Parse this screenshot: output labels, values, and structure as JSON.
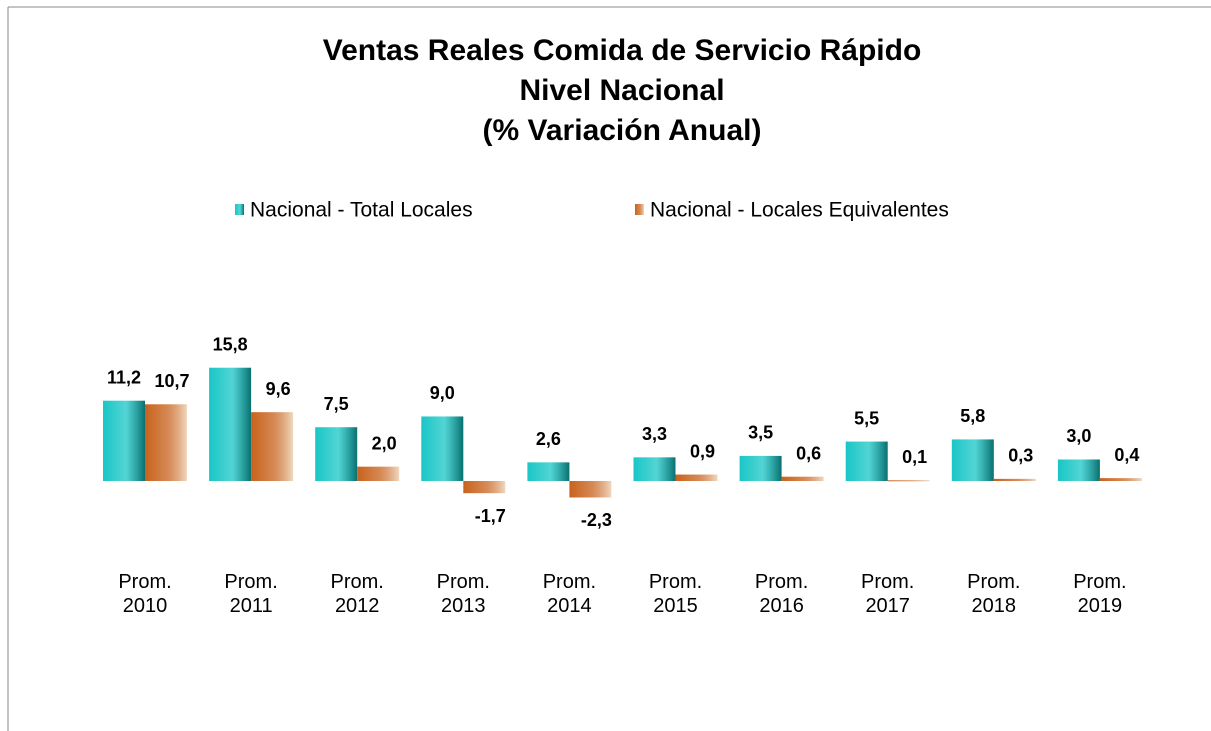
{
  "chart_data": {
    "type": "bar",
    "title": [
      "Ventas Reales Comida de Servicio Rápido",
      "Nivel Nacional",
      "(% Variación Anual)"
    ],
    "categories": [
      "Prom. 2010",
      "Prom. 2011",
      "Prom. 2012",
      "Prom. 2013",
      "Prom. 2014",
      "Prom. 2015",
      "Prom. 2016",
      "Prom. 2017",
      "Prom. 2018",
      "Prom. 2019"
    ],
    "series": [
      {
        "name": "Nacional - Total Locales",
        "color": "#19c6c6",
        "values": [
          11.2,
          15.8,
          7.5,
          9.0,
          2.6,
          3.3,
          3.5,
          5.5,
          5.8,
          3.0
        ],
        "value_labels": [
          "11,2",
          "15,8",
          "7,5",
          "9,0",
          "2,6",
          "3,3",
          "3,5",
          "5,5",
          "5,8",
          "3,0"
        ]
      },
      {
        "name": "Nacional - Locales Equivalentes",
        "color": "#c8621c",
        "values": [
          10.7,
          9.6,
          2.0,
          -1.7,
          -2.3,
          0.9,
          0.6,
          0.1,
          0.3,
          0.4
        ],
        "value_labels": [
          "10,7",
          "9,6",
          "2,0",
          "-1,7",
          "-2,3",
          "0,9",
          "0,6",
          "0,1",
          "0,3",
          "0,4"
        ]
      }
    ],
    "legend": "top"
  }
}
